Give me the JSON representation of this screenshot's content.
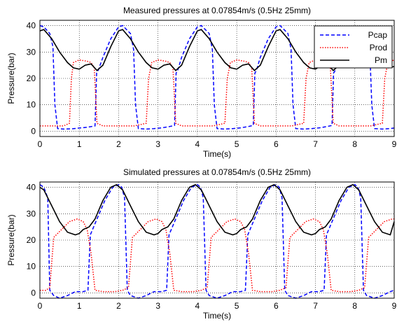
{
  "chart_data": [
    {
      "type": "line",
      "title": "Measured pressures at 0.07854m/s (0.5Hz 25mm)",
      "xlabel": "Time(s)",
      "ylabel": "Pressure(bar)",
      "xlim": [
        0,
        9
      ],
      "ylim": [
        -2,
        42
      ],
      "xticks": [
        "0",
        "1",
        "2",
        "3",
        "4",
        "5",
        "6",
        "7",
        "8",
        "9"
      ],
      "yticks": [
        "0",
        "10",
        "20",
        "30",
        "40"
      ],
      "grid": "on",
      "legend": "top-right",
      "series": [
        {
          "name": "Pcap",
          "color": "#0000ff",
          "style": "dashed",
          "x": [
            0,
            0.1,
            0.25,
            0.33,
            0.38,
            0.45,
            0.6,
            0.8,
            1.0,
            1.2,
            1.4,
            1.44,
            1.48,
            1.6,
            1.8,
            2.0,
            2.1,
            2.3,
            2.38,
            2.43,
            2.5,
            2.7,
            2.9,
            3.1,
            3.3,
            3.42,
            3.46,
            3.5,
            3.6,
            3.8,
            4.0,
            4.1,
            4.3,
            4.38,
            4.43,
            4.5,
            4.7,
            4.9,
            5.1,
            5.3,
            5.42,
            5.46,
            5.5,
            5.6,
            5.8,
            6.0,
            6.1,
            6.3,
            6.38,
            6.43,
            6.5,
            6.7,
            6.9,
            7.1,
            7.3,
            7.42,
            7.46,
            7.5,
            7.6,
            7.8,
            8.0,
            8.1,
            8.3,
            8.38,
            8.43,
            8.5,
            8.7,
            8.9,
            9.0
          ],
          "y": [
            40,
            39.5,
            37,
            32,
            10,
            1,
            0.8,
            0.9,
            1.2,
            1.5,
            2,
            22,
            23,
            28,
            35,
            39.5,
            40,
            37,
            31,
            10,
            1,
            0.8,
            1,
            1.3,
            1.8,
            2.2,
            22,
            23,
            28,
            35,
            39.5,
            40,
            37,
            31,
            10,
            1,
            0.8,
            1,
            1.3,
            1.8,
            2.2,
            22,
            23,
            28,
            35,
            39.5,
            40,
            37,
            31,
            10,
            1,
            0.8,
            1,
            1.3,
            1.8,
            2.2,
            22,
            23,
            28,
            35,
            39.5,
            40,
            37,
            31,
            10,
            1,
            0.8,
            1,
            1.2
          ]
        },
        {
          "name": "Prod",
          "color": "#ff0000",
          "style": "dotted",
          "x": [
            0,
            0.3,
            0.6,
            0.75,
            0.8,
            0.85,
            1.0,
            1.2,
            1.3,
            1.38,
            1.45,
            1.6,
            1.9,
            2.2,
            2.4,
            2.7,
            2.76,
            2.84,
            3.0,
            3.2,
            3.3,
            3.38,
            3.45,
            3.6,
            3.9,
            4.2,
            4.4,
            4.7,
            4.76,
            4.84,
            5.0,
            5.2,
            5.3,
            5.38,
            5.45,
            5.6,
            5.9,
            6.2,
            6.4,
            6.7,
            6.76,
            6.84,
            7.0,
            7.2,
            7.3,
            7.38,
            7.45,
            7.6,
            7.9,
            8.2,
            8.4,
            8.7,
            8.76,
            8.84,
            9.0
          ],
          "y": [
            2,
            2,
            2,
            3,
            20,
            26,
            27,
            26.5,
            26,
            24,
            3,
            2,
            2,
            2,
            2,
            3,
            20,
            26,
            27,
            26.5,
            26,
            24,
            3,
            2,
            2,
            2,
            2,
            3,
            20,
            26,
            27,
            26.5,
            26,
            24,
            3,
            2,
            2,
            2,
            2,
            3,
            20,
            26,
            27,
            26.5,
            26,
            24,
            3,
            2,
            2,
            2,
            2,
            3,
            20,
            26,
            27
          ]
        },
        {
          "name": "Pm",
          "color": "#000000",
          "style": "solid",
          "x": [
            0,
            0.1,
            0.3,
            0.5,
            0.7,
            0.85,
            1.0,
            1.15,
            1.3,
            1.45,
            1.6,
            1.8,
            2.0,
            2.1,
            2.3,
            2.5,
            2.7,
            2.85,
            3.0,
            3.15,
            3.3,
            3.45,
            3.6,
            3.8,
            4.0,
            4.1,
            4.3,
            4.5,
            4.7,
            4.85,
            5.0,
            5.15,
            5.3,
            5.45,
            5.6,
            5.8,
            6.0,
            6.1,
            6.3,
            6.5,
            6.7,
            6.85,
            7.0,
            7.15,
            7.3,
            7.45,
            7.6,
            7.8,
            8.0,
            8.1,
            8.3,
            8.5,
            8.7,
            8.85,
            9.0
          ],
          "y": [
            38,
            38.5,
            35,
            30,
            26,
            24,
            23.5,
            25,
            25.5,
            23,
            25,
            32,
            38,
            38.5,
            35,
            30,
            26,
            24,
            23.5,
            25,
            25.5,
            23,
            25,
            32,
            38,
            38.5,
            35,
            30,
            26,
            24,
            23.5,
            25,
            25.5,
            23,
            25,
            32,
            38,
            38.5,
            35,
            30,
            26,
            24,
            23.5,
            25,
            25.5,
            23,
            25,
            32,
            38,
            38.5,
            35,
            30,
            26,
            24,
            24.5
          ]
        }
      ]
    },
    {
      "type": "line",
      "title": "Simulated pressures at 0.07854m/s (0.5Hz 25mm)",
      "xlabel": "Time(s)",
      "ylabel": "Pressure(bar)",
      "xlim": [
        0,
        9
      ],
      "ylim": [
        -2,
        42
      ],
      "xticks": [
        "0",
        "1",
        "2",
        "3",
        "4",
        "5",
        "6",
        "7",
        "8",
        "9"
      ],
      "yticks": [
        "0",
        "10",
        "20",
        "30",
        "40"
      ],
      "grid": "on",
      "series": [
        {
          "name": "Pcap",
          "color": "#0000ff",
          "style": "dashed",
          "x": [
            0,
            0.1,
            0.2,
            0.25,
            0.35,
            0.5,
            0.7,
            0.9,
            1.1,
            1.22,
            1.28,
            1.45,
            1.65,
            1.85,
            2.0,
            2.08,
            2.15,
            2.22,
            2.3,
            2.5,
            2.7,
            2.9,
            3.1,
            3.22,
            3.28,
            3.45,
            3.65,
            3.85,
            4.0,
            4.08,
            4.15,
            4.22,
            4.3,
            4.5,
            4.7,
            4.9,
            5.1,
            5.22,
            5.28,
            5.45,
            5.65,
            5.85,
            6.0,
            6.08,
            6.15,
            6.22,
            6.3,
            6.5,
            6.7,
            6.9,
            7.1,
            7.22,
            7.28,
            7.45,
            7.65,
            7.85,
            8.0,
            8.08,
            8.15,
            8.22,
            8.3,
            8.5,
            8.7,
            8.9,
            9.0
          ],
          "y": [
            41,
            40,
            36,
            1,
            -1,
            -2,
            -1,
            0.5,
            0.5,
            1,
            22,
            28,
            35,
            40,
            41,
            40,
            36,
            1,
            -1,
            -2,
            -1,
            0.5,
            0.5,
            1,
            22,
            28,
            35,
            40,
            41,
            40,
            36,
            1,
            -1,
            -2,
            -1,
            0.5,
            0.5,
            1,
            22,
            28,
            35,
            40,
            41,
            40,
            36,
            1,
            -1,
            -2,
            -1,
            0.5,
            0.5,
            1,
            22,
            28,
            35,
            40,
            41,
            40,
            36,
            1,
            -1,
            -2,
            -1,
            0.5,
            1
          ]
        },
        {
          "name": "Prod",
          "color": "#ff0000",
          "style": "dotted",
          "x": [
            0,
            0.15,
            0.25,
            0.35,
            0.55,
            0.75,
            0.95,
            1.1,
            1.2,
            1.3,
            1.4,
            1.6,
            1.9,
            2.1,
            2.25,
            2.35,
            2.55,
            2.75,
            2.95,
            3.1,
            3.2,
            3.3,
            3.4,
            3.6,
            3.9,
            4.1,
            4.25,
            4.35,
            4.55,
            4.75,
            4.95,
            5.1,
            5.2,
            5.3,
            5.4,
            5.6,
            5.9,
            6.1,
            6.25,
            6.35,
            6.55,
            6.75,
            6.95,
            7.1,
            7.2,
            7.3,
            7.4,
            7.6,
            7.9,
            8.1,
            8.25,
            8.35,
            8.55,
            8.75,
            8.95,
            9.0
          ],
          "y": [
            1,
            1,
            2,
            21,
            24,
            27,
            28,
            27,
            24,
            15,
            1,
            0.5,
            0.5,
            1,
            2,
            21,
            24,
            27,
            28,
            27,
            24,
            15,
            1,
            0.5,
            0.5,
            1,
            2,
            21,
            24,
            27,
            28,
            27,
            24,
            15,
            1,
            0.5,
            0.5,
            1,
            2,
            21,
            24,
            27,
            28,
            27,
            24,
            15,
            1,
            0.5,
            0.5,
            1,
            2,
            21,
            24,
            27,
            28,
            28
          ]
        },
        {
          "name": "Pm",
          "color": "#000000",
          "style": "solid",
          "x": [
            0,
            0.1,
            0.3,
            0.5,
            0.7,
            0.9,
            1.0,
            1.1,
            1.25,
            1.4,
            1.6,
            1.8,
            1.95,
            2.1,
            2.3,
            2.5,
            2.7,
            2.9,
            3.0,
            3.1,
            3.25,
            3.4,
            3.6,
            3.8,
            3.95,
            4.1,
            4.3,
            4.5,
            4.7,
            4.9,
            5.0,
            5.1,
            5.25,
            5.4,
            5.6,
            5.8,
            5.95,
            6.1,
            6.3,
            6.5,
            6.7,
            6.9,
            7.0,
            7.1,
            7.25,
            7.4,
            7.6,
            7.8,
            7.95,
            8.1,
            8.3,
            8.5,
            8.7,
            8.9,
            9.0
          ],
          "y": [
            40,
            39,
            33,
            27,
            23,
            22,
            22.5,
            24,
            25,
            28,
            35,
            40,
            41,
            39,
            33,
            27,
            23,
            22,
            22.5,
            24,
            25,
            28,
            35,
            40,
            41,
            39,
            33,
            27,
            23,
            22,
            22.5,
            24,
            25,
            28,
            35,
            40,
            41,
            39,
            33,
            27,
            23,
            22,
            22.5,
            24,
            25,
            28,
            35,
            40,
            41,
            39,
            33,
            27,
            23,
            22,
            27
          ]
        }
      ]
    }
  ]
}
